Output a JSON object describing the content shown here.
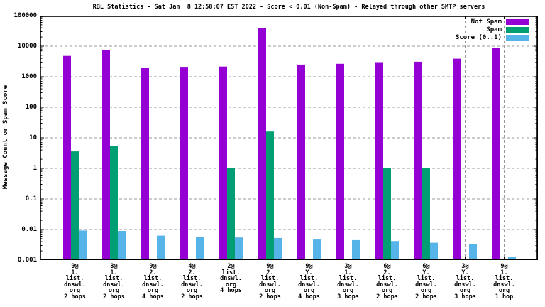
{
  "title": "RBL Statistics - Sat Jan  8 12:58:07 EST 2022 - Score < 0.01 (Non-Spam) - Relayed through other SMTP servers",
  "y_axis_title": "Message Count or Spam Score",
  "legend": {
    "items": [
      {
        "label": "Not Spam",
        "color": "#9400D3"
      },
      {
        "label": "Spam",
        "color": "#009E73"
      },
      {
        "label": "Score (0..1)",
        "color": "#56B4E9"
      }
    ]
  },
  "colors": {
    "not_spam": "#9400D3",
    "spam": "#009E73",
    "score": "#56B4E9",
    "grid": "#9a9a9a"
  },
  "chart_data": {
    "type": "bar",
    "y_scale": "log",
    "ylim": [
      0.001,
      100000
    ],
    "ytick_labels": [
      "100000",
      "10000",
      "1000",
      "100",
      "10",
      "1",
      "0.1",
      "0.01",
      "0.001"
    ],
    "grid": true,
    "legend_position": "top-right-inside",
    "title": "RBL Statistics - Sat Jan  8 12:58:07 EST 2022 - Score < 0.01 (Non-Spam) - Relayed through other SMTP servers",
    "ylabel": "Message Count or Spam Score",
    "xlabel": "",
    "categories": [
      [
        "9@",
        "1.",
        "list.",
        "dnswl.",
        "org",
        "2 hops"
      ],
      [
        "3@",
        "1.",
        "list.",
        "dnswl.",
        "org",
        "2 hops"
      ],
      [
        "9@",
        "2.",
        "list.",
        "dnswl.",
        "org",
        "4 hops"
      ],
      [
        "4@",
        "2.",
        "list.",
        "dnswl.",
        "org",
        "2 hops"
      ],
      [
        "2@",
        "list.",
        "dnswl.",
        "org",
        "4 hops"
      ],
      [
        "9@",
        "2.",
        "list.",
        "dnswl.",
        "org",
        "2 hops"
      ],
      [
        "9@",
        "Y.",
        "list.",
        "dnswl.",
        "org",
        "4 hops"
      ],
      [
        "3@",
        "1.",
        "list.",
        "dnswl.",
        "org",
        "3 hops"
      ],
      [
        "6@",
        "2.",
        "list.",
        "dnswl.",
        "org",
        "2 hops"
      ],
      [
        "6@",
        "Y.",
        "list.",
        "dnswl.",
        "org",
        "2 hops"
      ],
      [
        "3@",
        "Y.",
        "list.",
        "dnswl.",
        "org",
        "3 hops"
      ],
      [
        "9@",
        "1.",
        "list.",
        "dnswl.",
        "org",
        "1 hop"
      ]
    ],
    "series": [
      {
        "name": "Not Spam",
        "key": "not-spam",
        "color": "#9400D3",
        "values": [
          4800,
          7500,
          1900,
          2100,
          2150,
          40000,
          2500,
          2650,
          3000,
          3100,
          3900,
          8800
        ]
      },
      {
        "name": "Spam",
        "key": "spam",
        "color": "#009E73",
        "values": [
          3.6,
          5.5,
          null,
          null,
          1,
          16,
          null,
          null,
          1,
          1,
          null,
          null
        ]
      },
      {
        "name": "Score (0..1)",
        "key": "score",
        "color": "#56B4E9",
        "values": [
          0.0093,
          0.009,
          0.0063,
          0.0058,
          0.0055,
          0.0053,
          0.0047,
          0.0045,
          0.0042,
          0.0037,
          0.0033,
          0.0013
        ]
      }
    ]
  }
}
